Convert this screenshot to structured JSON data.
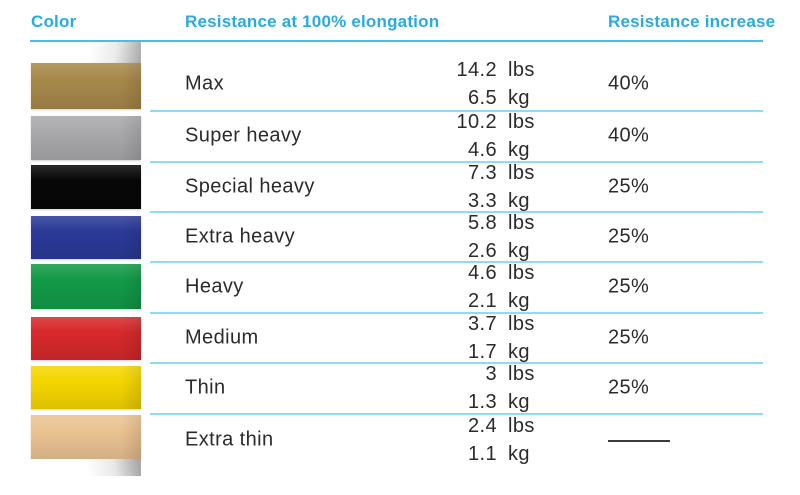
{
  "table": {
    "headers": {
      "color": "Color",
      "resistance": "Resistance at 100% elongation",
      "increase": "Resistance increase"
    },
    "rows": [
      {
        "label": "Max",
        "lbs": "14.2",
        "lbs_unit": "lbs",
        "kg": "6.5",
        "kg_unit": "kg",
        "increase": "40%",
        "color_name": "gold",
        "swatch_hex": "#A7894B"
      },
      {
        "label": "Super heavy",
        "lbs": "10.2",
        "lbs_unit": "lbs",
        "kg": "4.6",
        "kg_unit": "kg",
        "increase": "40%",
        "color_name": "silver",
        "swatch_hex": "#A9A9AB"
      },
      {
        "label": "Special heavy",
        "lbs": "7.3",
        "lbs_unit": "lbs",
        "kg": "3.3",
        "kg_unit": "kg",
        "increase": "25%",
        "color_name": "black",
        "swatch_hex": "#070707"
      },
      {
        "label": "Extra heavy",
        "lbs": "5.8",
        "lbs_unit": "lbs",
        "kg": "2.6",
        "kg_unit": "kg",
        "increase": "25%",
        "color_name": "blue",
        "swatch_hex": "#2B3A98"
      },
      {
        "label": "Heavy",
        "lbs": "4.6",
        "lbs_unit": "lbs",
        "kg": "2.1",
        "kg_unit": "kg",
        "increase": "25%",
        "color_name": "green",
        "swatch_hex": "#129B48"
      },
      {
        "label": "Medium",
        "lbs": "3.7",
        "lbs_unit": "lbs",
        "kg": "1.7",
        "kg_unit": "kg",
        "increase": "25%",
        "color_name": "red",
        "swatch_hex": "#D7292B"
      },
      {
        "label": "Thin",
        "lbs": "3",
        "lbs_unit": "lbs",
        "kg": "1.3",
        "kg_unit": "kg",
        "increase": "25%",
        "color_name": "yellow",
        "swatch_hex": "#F5D600"
      },
      {
        "label": "Extra thin",
        "lbs": "2.4",
        "lbs_unit": "lbs",
        "kg": "1.1",
        "kg_unit": "kg",
        "increase": "—",
        "color_name": "beige",
        "swatch_hex": "#EAC392"
      }
    ]
  },
  "colors": {
    "header_text": "#29ABE2",
    "header_underline": "#40C0EA",
    "row_separator": "#8EDCF4",
    "data_text": "#2B2B2B"
  },
  "chart_data": {
    "type": "table",
    "title": "Resistance band color chart",
    "columns": [
      "Color",
      "Resistance at 100% elongation",
      "Resistance increase"
    ],
    "rows": [
      {
        "color": "gold",
        "level": "Max",
        "resistance_lbs": 14.2,
        "resistance_kg": 6.5,
        "increase_pct": 40
      },
      {
        "color": "silver",
        "level": "Super heavy",
        "resistance_lbs": 10.2,
        "resistance_kg": 4.6,
        "increase_pct": 40
      },
      {
        "color": "black",
        "level": "Special heavy",
        "resistance_lbs": 7.3,
        "resistance_kg": 3.3,
        "increase_pct": 25
      },
      {
        "color": "blue",
        "level": "Extra heavy",
        "resistance_lbs": 5.8,
        "resistance_kg": 2.6,
        "increase_pct": 25
      },
      {
        "color": "green",
        "level": "Heavy",
        "resistance_lbs": 4.6,
        "resistance_kg": 2.1,
        "increase_pct": 25
      },
      {
        "color": "red",
        "level": "Medium",
        "resistance_lbs": 3.7,
        "resistance_kg": 1.7,
        "increase_pct": 25
      },
      {
        "color": "yellow",
        "level": "Thin",
        "resistance_lbs": 3,
        "resistance_kg": 1.3,
        "increase_pct": 25
      },
      {
        "color": "beige",
        "level": "Extra thin",
        "resistance_lbs": 2.4,
        "resistance_kg": 1.1,
        "increase_pct": null
      }
    ]
  }
}
